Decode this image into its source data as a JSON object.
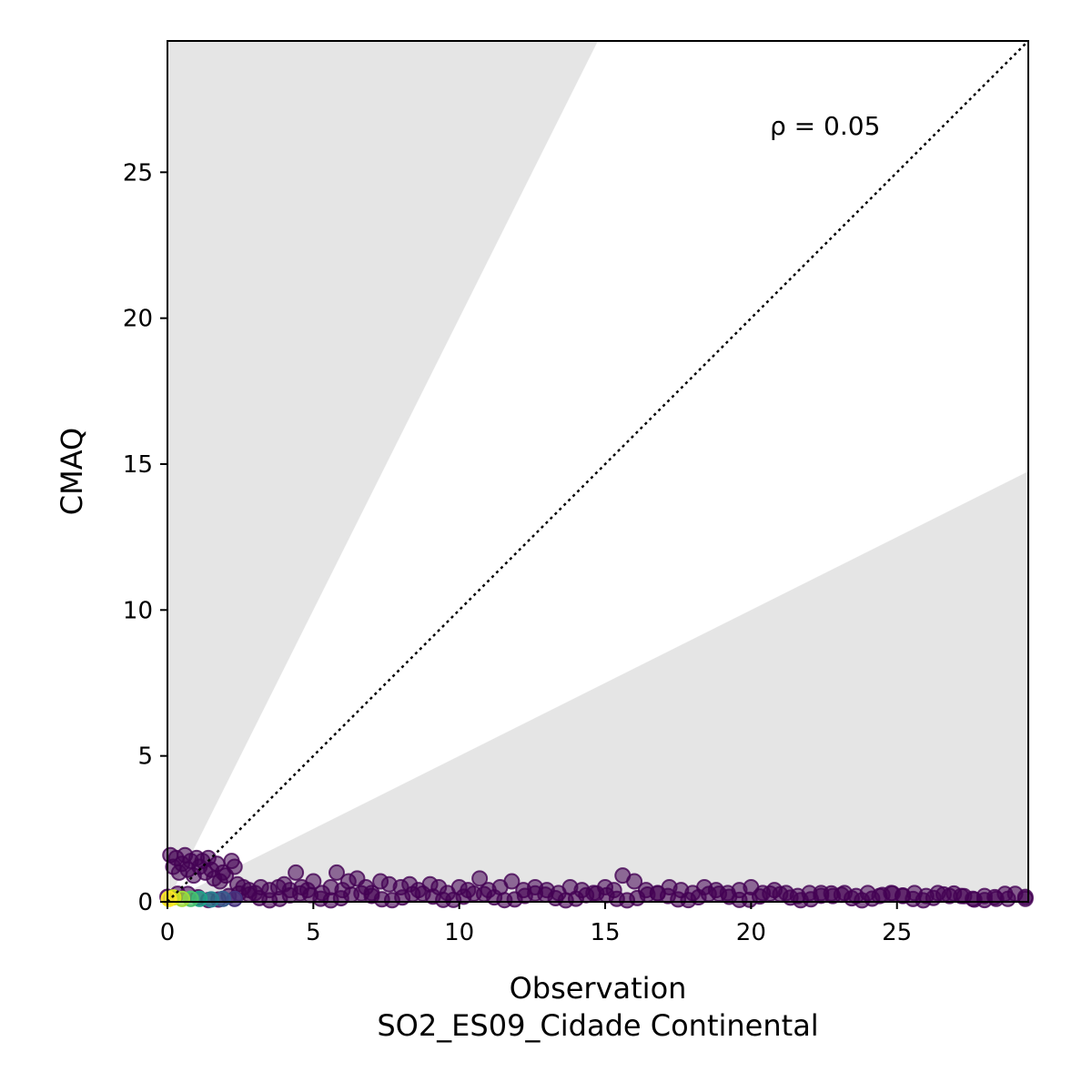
{
  "chart_data": {
    "type": "scatter",
    "xlabel": "Observation",
    "xlabel_sub": "SO2_ES09_Cidade Continental",
    "ylabel": "CMAQ",
    "annotation": "ρ = 0.05",
    "xlim": [
      0,
      29.5
    ],
    "ylim": [
      0,
      29.5
    ],
    "xticks": [
      0,
      5,
      10,
      15,
      20,
      25
    ],
    "yticks": [
      0,
      5,
      10,
      15,
      20,
      25
    ],
    "reference_line": {
      "style": "dotted",
      "slope": 1
    },
    "shaded_band": {
      "upper_slope": 2,
      "lower_slope": 0.5,
      "outside_color": "#e5e5e5"
    },
    "colormap": "viridis",
    "point_color": "#440154",
    "grid": false,
    "points": [
      [
        0.1,
        1.6
      ],
      [
        0.2,
        1.2
      ],
      [
        0.3,
        1.5
      ],
      [
        0.4,
        1.0
      ],
      [
        0.5,
        1.3
      ],
      [
        0.6,
        1.6
      ],
      [
        0.7,
        1.1
      ],
      [
        0.8,
        1.4
      ],
      [
        0.9,
        0.9
      ],
      [
        1.0,
        1.5
      ],
      [
        1.1,
        1.2
      ],
      [
        1.2,
        1.4
      ],
      [
        1.3,
        1.0
      ],
      [
        1.4,
        1.5
      ],
      [
        1.5,
        1.1
      ],
      [
        1.6,
        0.8
      ],
      [
        1.7,
        1.3
      ],
      [
        1.8,
        0.7
      ],
      [
        1.9,
        1.0
      ],
      [
        2.0,
        0.9
      ],
      [
        2.2,
        1.4
      ],
      [
        2.3,
        1.2
      ],
      [
        2.4,
        0.6
      ],
      [
        2.6,
        0.5
      ],
      [
        2.8,
        0.4
      ],
      [
        3.0,
        0.3
      ],
      [
        3.2,
        0.5
      ],
      [
        3.5,
        0.4
      ],
      [
        3.8,
        0.5
      ],
      [
        4.0,
        0.6
      ],
      [
        4.2,
        0.4
      ],
      [
        4.4,
        1.0
      ],
      [
        4.6,
        0.5
      ],
      [
        4.8,
        0.4
      ],
      [
        5.0,
        0.7
      ],
      [
        5.3,
        0.3
      ],
      [
        5.6,
        0.5
      ],
      [
        5.8,
        1.0
      ],
      [
        6.0,
        0.4
      ],
      [
        6.2,
        0.7
      ],
      [
        6.5,
        0.8
      ],
      [
        6.8,
        0.5
      ],
      [
        7.0,
        0.3
      ],
      [
        7.3,
        0.7
      ],
      [
        7.6,
        0.6
      ],
      [
        8.0,
        0.5
      ],
      [
        8.3,
        0.6
      ],
      [
        8.6,
        0.4
      ],
      [
        9.0,
        0.6
      ],
      [
        9.3,
        0.5
      ],
      [
        9.6,
        0.3
      ],
      [
        10.0,
        0.5
      ],
      [
        10.3,
        0.4
      ],
      [
        10.7,
        0.8
      ],
      [
        11.0,
        0.4
      ],
      [
        11.4,
        0.5
      ],
      [
        11.8,
        0.7
      ],
      [
        12.2,
        0.4
      ],
      [
        12.6,
        0.5
      ],
      [
        13.0,
        0.4
      ],
      [
        13.4,
        0.3
      ],
      [
        13.8,
        0.5
      ],
      [
        14.2,
        0.4
      ],
      [
        14.6,
        0.3
      ],
      [
        15.0,
        0.5
      ],
      [
        15.3,
        0.4
      ],
      [
        15.6,
        0.9
      ],
      [
        16.0,
        0.7
      ],
      [
        16.4,
        0.4
      ],
      [
        16.8,
        0.3
      ],
      [
        17.2,
        0.5
      ],
      [
        17.6,
        0.4
      ],
      [
        18.0,
        0.3
      ],
      [
        18.4,
        0.5
      ],
      [
        18.8,
        0.4
      ],
      [
        19.2,
        0.3
      ],
      [
        19.6,
        0.4
      ],
      [
        20.0,
        0.5
      ],
      [
        20.4,
        0.3
      ],
      [
        20.8,
        0.4
      ],
      [
        21.2,
        0.3
      ],
      [
        21.6,
        0.2
      ],
      [
        22.0,
        0.3
      ],
      [
        22.4,
        0.3
      ],
      [
        22.8,
        0.2
      ],
      [
        23.2,
        0.3
      ],
      [
        23.6,
        0.2
      ],
      [
        24.0,
        0.3
      ],
      [
        24.4,
        0.2
      ],
      [
        24.8,
        0.3
      ],
      [
        25.2,
        0.2
      ],
      [
        25.6,
        0.3
      ],
      [
        26.0,
        0.2
      ],
      [
        26.4,
        0.3
      ],
      [
        26.8,
        0.2
      ],
      [
        27.2,
        0.2
      ],
      [
        27.6,
        0.1
      ],
      [
        28.0,
        0.2
      ],
      [
        28.4,
        0.1
      ],
      [
        28.8,
        0.1
      ],
      [
        29.4,
        0.1
      ]
    ],
    "dense_points": [
      {
        "x": 0.05,
        "y": 0.1,
        "color": "#fde725"
      },
      {
        "x": 0.2,
        "y": 0.15,
        "color": "#d2e21b"
      },
      {
        "x": 0.5,
        "y": 0.1,
        "color": "#a0da39"
      },
      {
        "x": 0.8,
        "y": 0.1,
        "color": "#4ac16d"
      },
      {
        "x": 1.1,
        "y": 0.1,
        "color": "#1fa187"
      },
      {
        "x": 1.5,
        "y": 0.08,
        "color": "#277f8e"
      },
      {
        "x": 1.9,
        "y": 0.1,
        "color": "#365c8d"
      },
      {
        "x": 2.3,
        "y": 0.1,
        "color": "#46327e"
      }
    ]
  }
}
